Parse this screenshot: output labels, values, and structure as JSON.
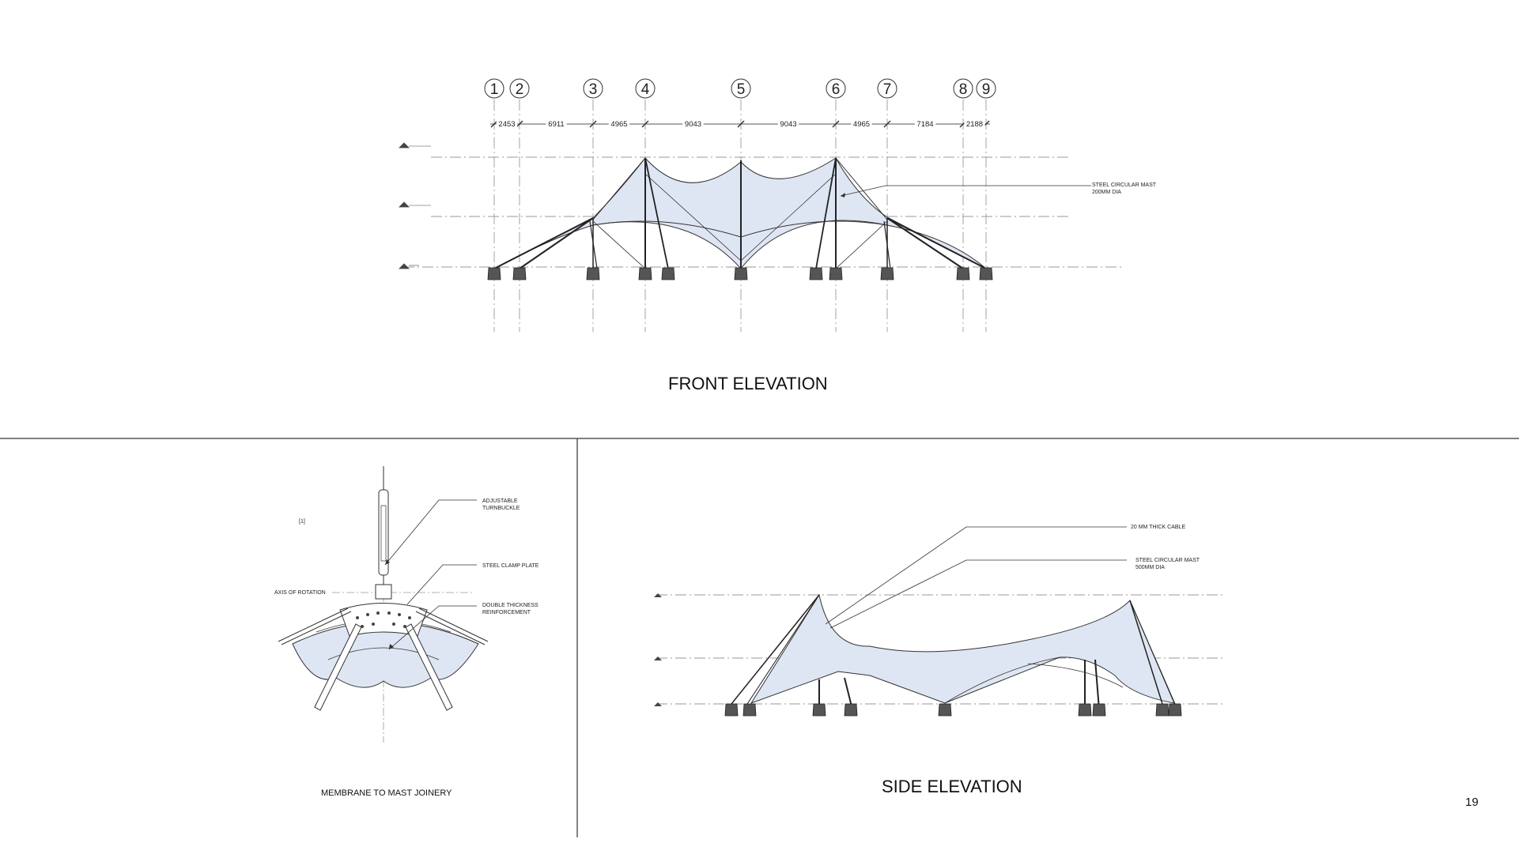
{
  "front": {
    "title": "FRONT ELEVATION",
    "grid_labels": [
      "1",
      "2",
      "3",
      "4",
      "5",
      "6",
      "7",
      "8",
      "9"
    ],
    "spacings": [
      "2453",
      "6911",
      "4965",
      "9043",
      "9043",
      "4965",
      "7184",
      "2188"
    ],
    "callout": [
      "STEEL CIRCULAR MAST",
      "200MM DIA"
    ]
  },
  "detail": {
    "title": "MEMBRANE TO MAST JOINERY",
    "ref_tag": "[1]",
    "axis_label": "AXIS OF ROTATION",
    "callouts": [
      [
        "ADJUSTABLE",
        "TURNBUCKLE"
      ],
      [
        "STEEL CLAMP PLATE"
      ],
      [
        "DOUBLE THICKNESS",
        "REINFORCEMENT"
      ]
    ]
  },
  "side": {
    "title": "SIDE ELEVATION",
    "callouts": [
      [
        "20 MM THICK CABLE"
      ],
      [
        "STEEL CIRCULAR MAST",
        "500MM DIA"
      ]
    ]
  },
  "page_number": "19",
  "colors": {
    "membrane": "#dfe6f3",
    "line": "#333333",
    "dash": "#9a9a9a"
  }
}
